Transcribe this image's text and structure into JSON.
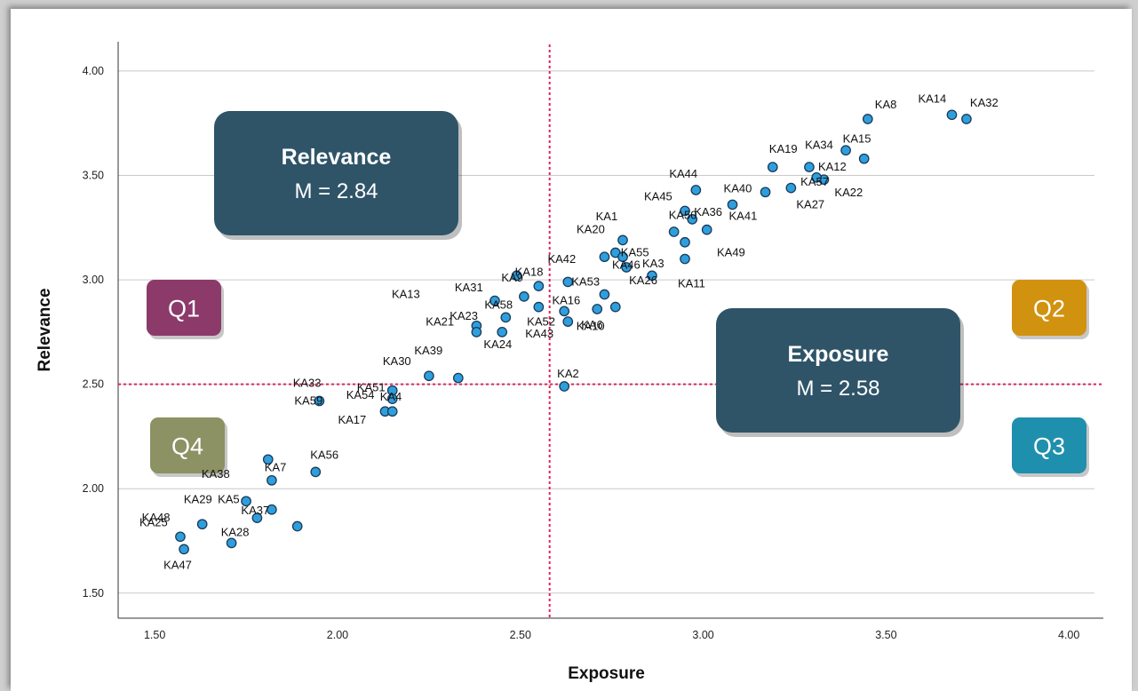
{
  "chart_data": {
    "type": "scatter",
    "xlabel": "Exposure",
    "ylabel": "Relevance",
    "xlim": [
      1.4,
      4.07
    ],
    "ylim": [
      1.38,
      4.14
    ],
    "x_ticks": [
      "1.50",
      "2.00",
      "2.50",
      "3.00",
      "3.50",
      "4.00"
    ],
    "y_ticks": [
      "1.50",
      "2.00",
      "2.50",
      "3.00",
      "3.50",
      "4.00"
    ],
    "grid": "horizontal",
    "points": [
      {
        "label": "KA8",
        "x": 3.45,
        "y": 3.77
      },
      {
        "label": "KA14",
        "x": 3.68,
        "y": 3.79
      },
      {
        "label": "KA32",
        "x": 3.72,
        "y": 3.77
      },
      {
        "label": "KA34",
        "x": 3.39,
        "y": 3.62
      },
      {
        "label": "KA15",
        "x": 3.44,
        "y": 3.58
      },
      {
        "label": "KA19",
        "x": 3.19,
        "y": 3.54
      },
      {
        "label": "KA12",
        "x": 3.29,
        "y": 3.54
      },
      {
        "label": "KA22",
        "x": 3.33,
        "y": 3.48
      },
      {
        "label": "KA57",
        "x": 3.31,
        "y": 3.49
      },
      {
        "label": "KA40",
        "x": 3.17,
        "y": 3.42
      },
      {
        "label": "KA27",
        "x": 3.24,
        "y": 3.44
      },
      {
        "label": "KA44",
        "x": 2.98,
        "y": 3.43
      },
      {
        "label": "KA41",
        "x": 3.08,
        "y": 3.36
      },
      {
        "label": "KA45",
        "x": 2.95,
        "y": 3.33
      },
      {
        "label": "KA36",
        "x": 2.97,
        "y": 3.29
      },
      {
        "label": "KA1",
        "x": 2.92,
        "y": 3.23
      },
      {
        "label": "KA50",
        "x": 3.01,
        "y": 3.24
      },
      {
        "label": "KA49",
        "x": 2.95,
        "y": 3.18
      },
      {
        "label": "KA20",
        "x": 2.78,
        "y": 3.19
      },
      {
        "label": "KA42",
        "x": 2.73,
        "y": 3.11
      },
      {
        "label": "KA55",
        "x": 2.76,
        "y": 3.13
      },
      {
        "label": "KA3",
        "x": 2.78,
        "y": 3.11
      },
      {
        "label": "KA11",
        "x": 2.95,
        "y": 3.1
      },
      {
        "label": "KA26",
        "x": 2.79,
        "y": 3.06
      },
      {
        "label": "KA46",
        "x": 2.86,
        "y": 3.02
      },
      {
        "label": "KA18",
        "x": 2.49,
        "y": 3.02
      },
      {
        "label": "KA53",
        "x": 2.63,
        "y": 2.99
      },
      {
        "label": "KA9",
        "x": 2.55,
        "y": 2.97
      },
      {
        "label": "KA31",
        "x": 2.51,
        "y": 2.92
      },
      {
        "label": "KA16",
        "x": 2.73,
        "y": 2.93
      },
      {
        "label": "KA13",
        "x": 2.43,
        "y": 2.9
      },
      {
        "label": "KA58",
        "x": 2.55,
        "y": 2.87
      },
      {
        "label": "KA52",
        "x": 2.62,
        "y": 2.85
      },
      {
        "label": "KA6",
        "x": 2.71,
        "y": 2.86
      },
      {
        "label": "KA10",
        "x": 2.76,
        "y": 2.87
      },
      {
        "label": "KA21",
        "x": 2.46,
        "y": 2.82
      },
      {
        "label": "KA39",
        "x": 2.38,
        "y": 2.78
      },
      {
        "label": "KA43",
        "x": 2.63,
        "y": 2.8
      },
      {
        "label": "KA24",
        "x": 2.38,
        "y": 2.75
      },
      {
        "label": "KA23",
        "x": 2.45,
        "y": 2.75
      },
      {
        "label": "KA30",
        "x": 2.25,
        "y": 2.54
      },
      {
        "label": "KA51",
        "x": 2.33,
        "y": 2.53
      },
      {
        "label": "KA2",
        "x": 2.62,
        "y": 2.49
      },
      {
        "label": "KA59",
        "x": 1.95,
        "y": 2.42
      },
      {
        "label": "KA33",
        "x": 2.15,
        "y": 2.47
      },
      {
        "label": "KA4",
        "x": 2.15,
        "y": 2.43
      },
      {
        "label": "KA17",
        "x": 2.13,
        "y": 2.37
      },
      {
        "label": "KA54",
        "x": 2.15,
        "y": 2.37
      },
      {
        "label": "KA7",
        "x": 1.81,
        "y": 2.14
      },
      {
        "label": "KA56",
        "x": 1.94,
        "y": 2.08
      },
      {
        "label": "KA38",
        "x": 1.82,
        "y": 2.04
      },
      {
        "label": "KA5",
        "x": 1.75,
        "y": 1.94
      },
      {
        "label": "KA29",
        "x": 1.82,
        "y": 1.9
      },
      {
        "label": "KA48",
        "x": 1.63,
        "y": 1.83
      },
      {
        "label": "KA37",
        "x": 1.78,
        "y": 1.86
      },
      {
        "label": "KA28",
        "x": 1.89,
        "y": 1.82
      },
      {
        "label": "KA25",
        "x": 1.57,
        "y": 1.77
      },
      {
        "label": "KA47",
        "x": 1.58,
        "y": 1.71
      }
    ],
    "extra_point": {
      "x": 1.71,
      "y": 1.74
    },
    "reference_lines": {
      "x": 2.58,
      "y": 2.5
    },
    "callouts": [
      {
        "title": "Relevance",
        "value": "M = 2.84",
        "color": "#2f5468"
      },
      {
        "title": "Exposure",
        "value": "M = 2.58",
        "color": "#2f5468"
      }
    ],
    "quadrants": [
      {
        "label": "Q1",
        "color": "#8c3a6a"
      },
      {
        "label": "Q2",
        "color": "#d19210"
      },
      {
        "label": "Q3",
        "color": "#1f8fae"
      },
      {
        "label": "Q4",
        "color": "#8c9263"
      }
    ],
    "marker_color": "#2e9fdc",
    "reference_line_color": "#e0245e"
  }
}
